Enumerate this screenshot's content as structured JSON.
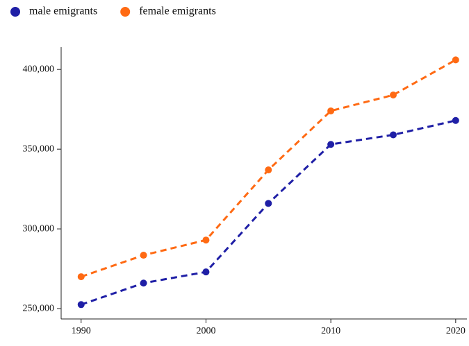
{
  "chart_data": {
    "type": "line",
    "x": [
      1990,
      1995,
      2000,
      2005,
      2010,
      2015,
      2020
    ],
    "series": [
      {
        "name": "male emigrants",
        "color": "#1f1fa6",
        "values": [
          252500,
          266000,
          273000,
          316000,
          353000,
          359000,
          368000
        ]
      },
      {
        "name": "female emigrants",
        "color": "#ff6a13",
        "values": [
          270000,
          283500,
          293000,
          337000,
          374000,
          384000,
          406000
        ]
      }
    ],
    "xlim": [
      1988.4,
      2020.9
    ],
    "xticks": [
      1990,
      2000,
      2010,
      2020
    ],
    "ylim": [
      243500,
      414000
    ],
    "yticks": [
      {
        "value": 250000,
        "label": "250,000"
      },
      {
        "value": 300000,
        "label": "300,000"
      },
      {
        "value": 350000,
        "label": "350,000"
      },
      {
        "value": 400000,
        "label": "400,000"
      }
    ],
    "line_style": "dashed",
    "legend": "top-left"
  }
}
